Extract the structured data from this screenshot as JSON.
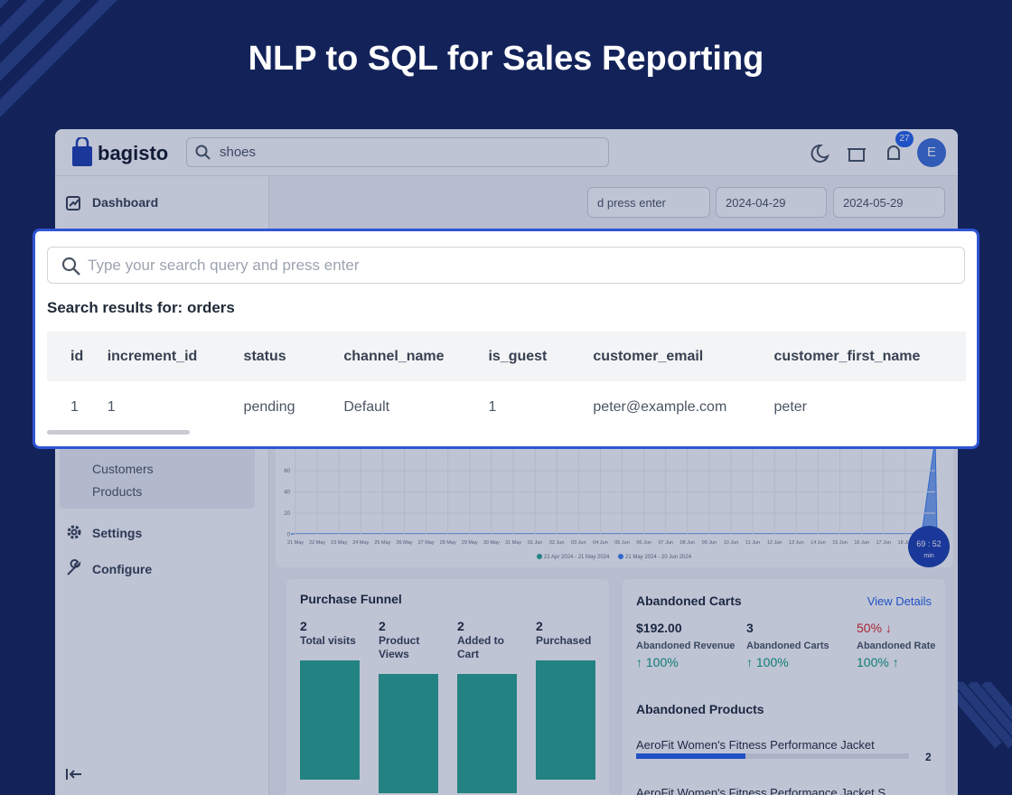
{
  "title": "NLP to SQL for Sales Reporting",
  "app": {
    "logo": "bagisto",
    "search": "shoes",
    "notifications": "27",
    "avatar": "E",
    "sidebar": [
      "Dashboard",
      "Customers",
      "Products",
      "Settings",
      "Configure"
    ],
    "filter_placeholder": "d press enter",
    "date_from": "2024-04-29",
    "date_to": "2024-05-29",
    "chart": {
      "y_labels": [
        "60",
        "40",
        "20",
        "0"
      ],
      "x_labels": [
        "21 May",
        "22 May",
        "23 May",
        "24 May",
        "25 May",
        "26 May",
        "27 May",
        "28 May",
        "29 May",
        "30 May",
        "31 May",
        "01 Jun",
        "02 Jun",
        "03 Jun",
        "04 Jun",
        "05 Jun",
        "06 Jun",
        "07 Jun",
        "08 Jun",
        "09 Jun",
        "10 Jun",
        "11 Jun",
        "12 Jun",
        "13 Jun",
        "14 Jun",
        "15 Jun",
        "16 Jun",
        "17 Jun",
        "18 Jun"
      ],
      "legend": [
        "21 Apr 2024 - 21 May 2024",
        "21 May 2024 - 20 Jun 2024"
      ],
      "timer": "69 : 52",
      "timer_unit": "min"
    },
    "purchase_funnel": {
      "title": "Purchase Funnel",
      "steps": [
        {
          "value": 2,
          "label": "Total visits"
        },
        {
          "value": 2,
          "label": "Product Views"
        },
        {
          "value": 2,
          "label": "Added to Cart"
        },
        {
          "value": 2,
          "label": "Purchased"
        }
      ]
    },
    "abandoned_carts": {
      "title": "Abandoned Carts",
      "link": "View Details",
      "stats": [
        {
          "value": "$192.00",
          "label": "Abandoned Revenue",
          "change": "↑ 100%"
        },
        {
          "value": "3",
          "label": "Abandoned Carts",
          "change": "↑ 100%"
        },
        {
          "value": "50% ↓",
          "label": "Abandoned Rate",
          "change": "100% ↑"
        }
      ]
    },
    "abandoned_products": {
      "title": "Abandoned Products",
      "items": [
        {
          "name": "AeroFit Women's Fitness Performance Jacket",
          "count": "2"
        },
        {
          "name": "AeroFit Women's Fitness Performance Jacket S"
        }
      ]
    }
  },
  "modal": {
    "placeholder": "Type your search query and press enter",
    "heading": "Search results for: orders",
    "table": {
      "headers": [
        "id",
        "increment_id",
        "status",
        "channel_name",
        "is_guest",
        "customer_email",
        "customer_first_name"
      ],
      "rows": [
        [
          "1",
          "1",
          "pending",
          "Default",
          "1",
          "peter@example.com",
          "peter"
        ]
      ]
    }
  }
}
